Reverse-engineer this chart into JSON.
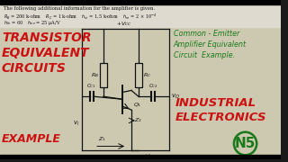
{
  "bg_color": "#1a1a1a",
  "text_area_bg": "#d8d4c0",
  "title_text": "The following additional information for the amplifier is given.",
  "left_title1": "TRANSISTOR",
  "left_title2": "EQUIVALENT",
  "left_title3": "CIRCUITS",
  "left_title4": "EXAMPLE",
  "right_title1": "Common - Emitter",
  "right_title2": "Amplifier Equivalent",
  "right_title3": "Circuit  Example.",
  "industrial": "INDUSTRIAL",
  "electronics": "ELECTRONICS",
  "n5": "N5",
  "text_color_black": "#111111",
  "text_color_red": "#cc1111",
  "text_color_green": "#1a7a1a",
  "circuit_color": "#111111",
  "top_bar_color": "#000000",
  "content_bg": "#ccc9b0"
}
